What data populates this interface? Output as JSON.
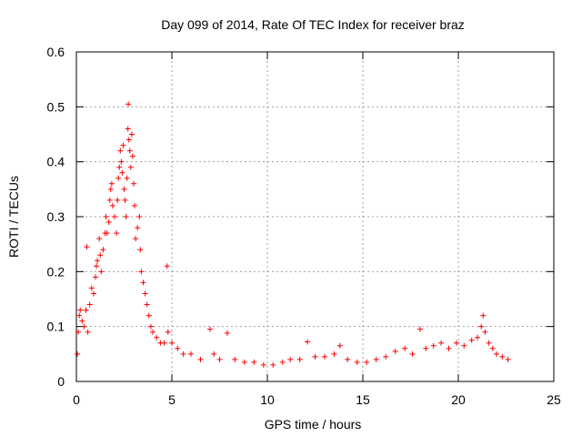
{
  "chart_data": {
    "type": "scatter",
    "title": "Day 099 of 2014, Rate Of TEC Index for receiver braz",
    "xlabel": "GPS time / hours",
    "ylabel": "ROTI / TECUs",
    "xlim": [
      0,
      25
    ],
    "ylim": [
      0,
      0.6
    ],
    "xticks": [
      0,
      5,
      10,
      15,
      20,
      25
    ],
    "yticks": [
      0,
      0.1,
      0.2,
      0.3,
      0.4,
      0.5,
      0.6
    ],
    "xtick_labels": [
      "0",
      "5",
      "10",
      "15",
      "20",
      "25"
    ],
    "ytick_labels": [
      "0",
      "0.1",
      "0.2",
      "0.3",
      "0.4",
      "0.5",
      "0.6"
    ],
    "grid": true,
    "marker": "+",
    "color": "#ff0000",
    "series": [
      {
        "name": "ROTI",
        "points": [
          [
            0.05,
            0.05
          ],
          [
            0.1,
            0.09
          ],
          [
            0.15,
            0.12
          ],
          [
            0.2,
            0.13
          ],
          [
            0.3,
            0.11
          ],
          [
            0.4,
            0.1
          ],
          [
            0.5,
            0.13
          ],
          [
            0.6,
            0.09
          ],
          [
            0.55,
            0.245
          ],
          [
            0.7,
            0.14
          ],
          [
            0.8,
            0.17
          ],
          [
            0.9,
            0.16
          ],
          [
            1.0,
            0.19
          ],
          [
            1.05,
            0.21
          ],
          [
            1.1,
            0.22
          ],
          [
            1.2,
            0.26
          ],
          [
            1.25,
            0.23
          ],
          [
            1.3,
            0.2
          ],
          [
            1.4,
            0.24
          ],
          [
            1.5,
            0.27
          ],
          [
            1.55,
            0.3
          ],
          [
            1.6,
            0.27
          ],
          [
            1.7,
            0.29
          ],
          [
            1.75,
            0.33
          ],
          [
            1.8,
            0.35
          ],
          [
            1.85,
            0.36
          ],
          [
            1.9,
            0.32
          ],
          [
            2.0,
            0.3
          ],
          [
            2.1,
            0.27
          ],
          [
            2.15,
            0.33
          ],
          [
            2.2,
            0.37
          ],
          [
            2.25,
            0.39
          ],
          [
            2.3,
            0.42
          ],
          [
            2.35,
            0.4
          ],
          [
            2.4,
            0.38
          ],
          [
            2.45,
            0.43
          ],
          [
            2.5,
            0.35
          ],
          [
            2.55,
            0.33
          ],
          [
            2.6,
            0.3
          ],
          [
            2.65,
            0.37
          ],
          [
            2.7,
            0.46
          ],
          [
            2.72,
            0.505
          ],
          [
            2.75,
            0.44
          ],
          [
            2.8,
            0.42
          ],
          [
            2.85,
            0.39
          ],
          [
            2.9,
            0.45
          ],
          [
            2.95,
            0.41
          ],
          [
            3.0,
            0.36
          ],
          [
            3.05,
            0.32
          ],
          [
            3.1,
            0.26
          ],
          [
            3.2,
            0.28
          ],
          [
            3.3,
            0.3
          ],
          [
            3.35,
            0.24
          ],
          [
            3.4,
            0.2
          ],
          [
            3.5,
            0.18
          ],
          [
            3.6,
            0.16
          ],
          [
            3.7,
            0.14
          ],
          [
            3.8,
            0.12
          ],
          [
            3.9,
            0.1
          ],
          [
            4.0,
            0.09
          ],
          [
            4.2,
            0.08
          ],
          [
            4.4,
            0.07
          ],
          [
            4.6,
            0.07
          ],
          [
            4.75,
            0.21
          ],
          [
            4.8,
            0.09
          ],
          [
            5.0,
            0.07
          ],
          [
            5.3,
            0.06
          ],
          [
            5.6,
            0.05
          ],
          [
            6.0,
            0.05
          ],
          [
            6.5,
            0.04
          ],
          [
            7.0,
            0.095
          ],
          [
            7.2,
            0.05
          ],
          [
            7.5,
            0.04
          ],
          [
            7.9,
            0.088
          ],
          [
            8.3,
            0.04
          ],
          [
            8.8,
            0.035
          ],
          [
            9.3,
            0.035
          ],
          [
            9.8,
            0.03
          ],
          [
            10.3,
            0.03
          ],
          [
            10.8,
            0.035
          ],
          [
            11.2,
            0.04
          ],
          [
            11.7,
            0.04
          ],
          [
            12.1,
            0.072
          ],
          [
            12.5,
            0.045
          ],
          [
            13.0,
            0.045
          ],
          [
            13.5,
            0.05
          ],
          [
            13.8,
            0.065
          ],
          [
            14.2,
            0.04
          ],
          [
            14.7,
            0.035
          ],
          [
            15.2,
            0.035
          ],
          [
            15.7,
            0.04
          ],
          [
            16.2,
            0.045
          ],
          [
            16.7,
            0.055
          ],
          [
            17.2,
            0.06
          ],
          [
            17.6,
            0.05
          ],
          [
            18.0,
            0.095
          ],
          [
            18.3,
            0.06
          ],
          [
            18.7,
            0.065
          ],
          [
            19.1,
            0.07
          ],
          [
            19.5,
            0.06
          ],
          [
            19.9,
            0.07
          ],
          [
            20.3,
            0.065
          ],
          [
            20.7,
            0.075
          ],
          [
            21.0,
            0.08
          ],
          [
            21.2,
            0.1
          ],
          [
            21.3,
            0.12
          ],
          [
            21.4,
            0.09
          ],
          [
            21.6,
            0.07
          ],
          [
            21.8,
            0.06
          ],
          [
            22.0,
            0.05
          ],
          [
            22.3,
            0.045
          ],
          [
            22.6,
            0.04
          ]
        ]
      }
    ]
  }
}
